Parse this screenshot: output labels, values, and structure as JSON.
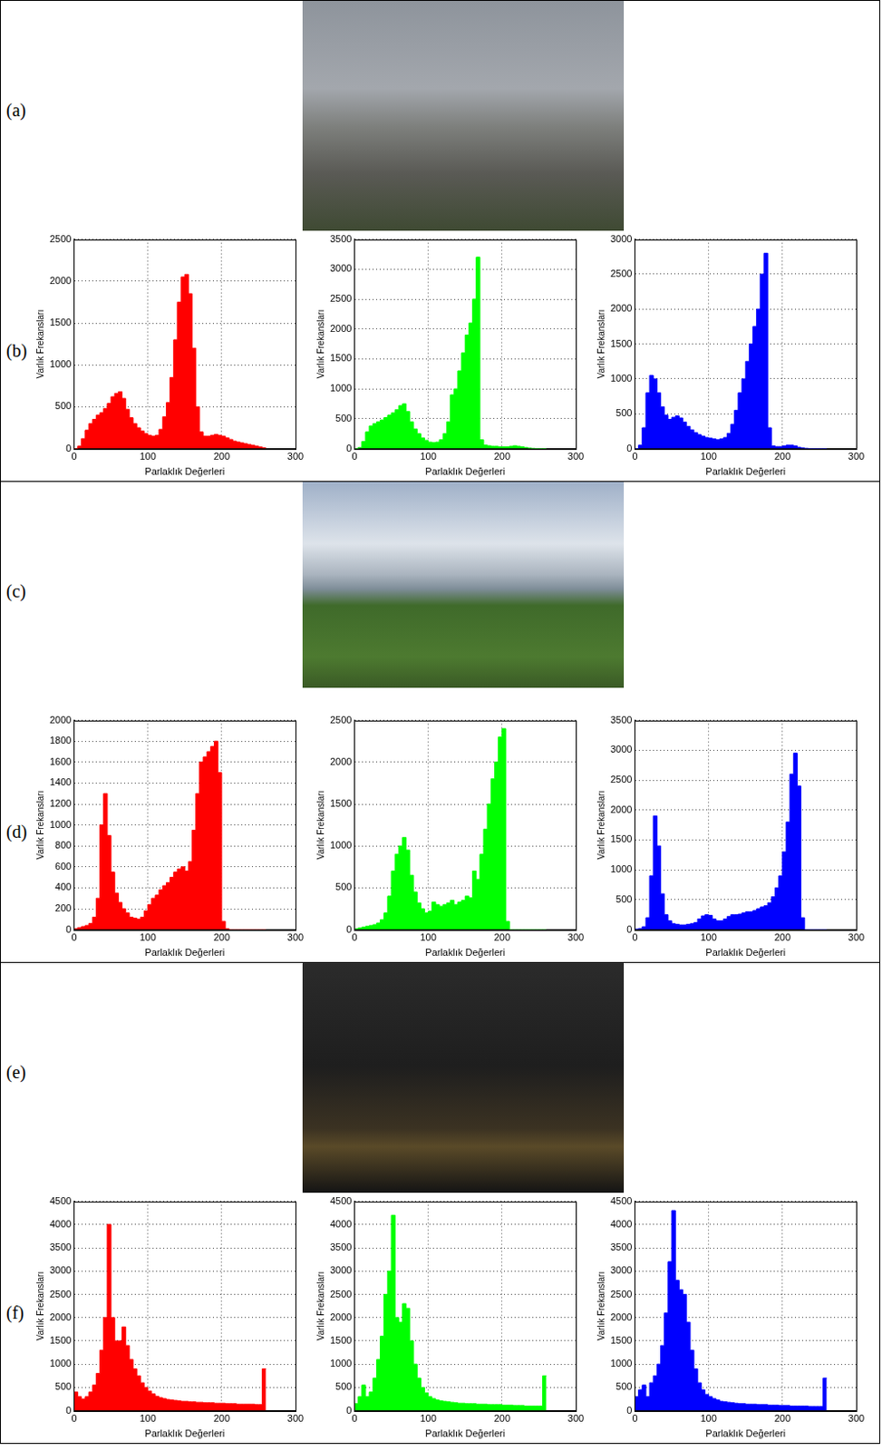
{
  "panel_labels": [
    "(a)",
    "(b)",
    "(c)",
    "(d)",
    "(e)",
    "(f)"
  ],
  "chart_data": [
    {
      "type": "histogram",
      "color": "#ff0000",
      "xlabel": "Parlaklık Değerleri",
      "ylabel": "Varlık Frekansları",
      "bins": [
        0,
        5,
        10,
        15,
        20,
        25,
        30,
        35,
        40,
        45,
        50,
        55,
        60,
        65,
        70,
        75,
        80,
        85,
        90,
        95,
        100,
        105,
        110,
        115,
        120,
        125,
        130,
        135,
        140,
        145,
        150,
        155,
        160,
        165,
        170,
        175,
        180,
        185,
        190,
        195,
        200,
        205,
        210,
        215,
        220,
        225,
        230,
        235,
        240,
        245,
        250,
        255,
        260
      ],
      "values": [
        0,
        30,
        120,
        220,
        300,
        350,
        400,
        430,
        480,
        540,
        620,
        660,
        680,
        600,
        470,
        370,
        300,
        250,
        210,
        180,
        160,
        150,
        160,
        230,
        380,
        550,
        850,
        1300,
        1750,
        2050,
        2080,
        1850,
        1200,
        500,
        200,
        150,
        150,
        160,
        170,
        160,
        150,
        130,
        110,
        90,
        80,
        70,
        60,
        50,
        40,
        30,
        20,
        10
      ],
      "xlim": [
        0,
        300
      ],
      "xticks": [
        0,
        100,
        200,
        300
      ],
      "ylim": [
        0,
        2500
      ],
      "yticks": [
        0,
        500,
        1000,
        1500,
        2000,
        2500
      ],
      "grid": true
    },
    {
      "type": "histogram",
      "color": "#00ff00",
      "xlabel": "Parlaklık Değerleri",
      "ylabel": "Varlık Frekansları",
      "bins": [
        0,
        5,
        10,
        15,
        20,
        25,
        30,
        35,
        40,
        45,
        50,
        55,
        60,
        65,
        70,
        75,
        80,
        85,
        90,
        95,
        100,
        105,
        110,
        115,
        120,
        125,
        130,
        135,
        140,
        145,
        150,
        155,
        160,
        165,
        170,
        175,
        180,
        185,
        190,
        195,
        200,
        205,
        210,
        215,
        220,
        225,
        230,
        235,
        240,
        245,
        250,
        255,
        260
      ],
      "values": [
        0,
        20,
        120,
        280,
        380,
        420,
        450,
        480,
        520,
        560,
        600,
        650,
        720,
        750,
        620,
        450,
        330,
        250,
        180,
        140,
        110,
        100,
        110,
        150,
        250,
        450,
        900,
        1000,
        1300,
        1600,
        1900,
        2100,
        2500,
        3200,
        150,
        60,
        50,
        40,
        40,
        30,
        30,
        30,
        40,
        50,
        40,
        30,
        20,
        10,
        5,
        0,
        0,
        0
      ],
      "xlim": [
        0,
        300
      ],
      "xticks": [
        0,
        100,
        200,
        300
      ],
      "ylim": [
        0,
        3500
      ],
      "yticks": [
        0,
        500,
        1000,
        1500,
        2000,
        2500,
        3000,
        3500
      ],
      "grid": true
    },
    {
      "type": "histogram",
      "color": "#0000ff",
      "xlabel": "Parlaklık Değerleri",
      "ylabel": "Varlık Frekansları",
      "bins": [
        0,
        5,
        10,
        15,
        20,
        25,
        30,
        35,
        40,
        45,
        50,
        55,
        60,
        65,
        70,
        75,
        80,
        85,
        90,
        95,
        100,
        105,
        110,
        115,
        120,
        125,
        130,
        135,
        140,
        145,
        150,
        155,
        160,
        165,
        170,
        175,
        180,
        185,
        190,
        195,
        200,
        205,
        210,
        215,
        220,
        225,
        230,
        235,
        240,
        245,
        250,
        255,
        260
      ],
      "values": [
        0,
        50,
        300,
        800,
        1050,
        1000,
        800,
        600,
        480,
        420,
        450,
        470,
        440,
        380,
        320,
        270,
        230,
        200,
        180,
        160,
        150,
        140,
        130,
        140,
        160,
        220,
        350,
        550,
        800,
        1000,
        1250,
        1500,
        1750,
        2000,
        2500,
        2800,
        300,
        40,
        30,
        30,
        40,
        50,
        50,
        40,
        20,
        10,
        5,
        0,
        0,
        0,
        0,
        0
      ],
      "xlim": [
        0,
        300
      ],
      "xticks": [
        0,
        100,
        200,
        300
      ],
      "ylim": [
        0,
        3000
      ],
      "yticks": [
        0,
        500,
        1000,
        1500,
        2000,
        2500,
        3000
      ],
      "grid": true
    },
    {
      "type": "histogram",
      "color": "#ff0000",
      "xlabel": "Parlaklık Değerleri",
      "ylabel": "Varlık Frekansları",
      "bins": [
        0,
        5,
        10,
        15,
        20,
        25,
        30,
        35,
        40,
        45,
        50,
        55,
        60,
        65,
        70,
        75,
        80,
        85,
        90,
        95,
        100,
        105,
        110,
        115,
        120,
        125,
        130,
        135,
        140,
        145,
        150,
        155,
        160,
        165,
        170,
        175,
        180,
        185,
        190,
        195,
        200,
        205,
        210,
        215,
        220,
        225,
        230,
        235,
        240,
        245,
        250,
        255,
        260
      ],
      "values": [
        10,
        20,
        30,
        40,
        60,
        120,
        300,
        1000,
        1300,
        900,
        550,
        350,
        260,
        200,
        160,
        120,
        110,
        100,
        120,
        180,
        240,
        300,
        330,
        380,
        420,
        450,
        500,
        550,
        580,
        600,
        560,
        650,
        950,
        1300,
        1600,
        1650,
        1700,
        1750,
        1800,
        1500,
        80,
        10,
        0,
        0,
        0,
        0,
        0,
        0,
        0,
        0,
        0,
        0
      ],
      "xlim": [
        0,
        300
      ],
      "xticks": [
        0,
        100,
        200,
        300
      ],
      "ylim": [
        0,
        2000
      ],
      "yticks": [
        0,
        200,
        400,
        600,
        800,
        1000,
        1200,
        1400,
        1600,
        1800,
        2000
      ],
      "grid": true
    },
    {
      "type": "histogram",
      "color": "#00ff00",
      "xlabel": "Parlaklık Değerleri",
      "ylabel": "Varlık Frekansları",
      "bins": [
        0,
        5,
        10,
        15,
        20,
        25,
        30,
        35,
        40,
        45,
        50,
        55,
        60,
        65,
        70,
        75,
        80,
        85,
        90,
        95,
        100,
        105,
        110,
        115,
        120,
        125,
        130,
        135,
        140,
        145,
        150,
        155,
        160,
        165,
        170,
        175,
        180,
        185,
        190,
        195,
        200,
        205,
        210,
        215,
        220,
        225,
        230,
        235,
        240,
        245,
        250,
        255,
        260
      ],
      "values": [
        10,
        20,
        30,
        40,
        50,
        60,
        80,
        120,
        200,
        400,
        700,
        900,
        1000,
        1100,
        950,
        650,
        450,
        320,
        250,
        200,
        220,
        330,
        300,
        280,
        300,
        320,
        350,
        300,
        330,
        350,
        400,
        380,
        700,
        600,
        900,
        1200,
        1500,
        1800,
        2000,
        2300,
        2400,
        100,
        0,
        0,
        0,
        0,
        0,
        0,
        0,
        0,
        0,
        0
      ],
      "xlim": [
        0,
        300
      ],
      "xticks": [
        0,
        100,
        200,
        300
      ],
      "ylim": [
        0,
        2500
      ],
      "yticks": [
        0,
        500,
        1000,
        1500,
        2000,
        2500
      ],
      "grid": true
    },
    {
      "type": "histogram",
      "color": "#0000ff",
      "xlabel": "Parlaklık Değerleri",
      "ylabel": "Varlık Frekansları",
      "bins": [
        0,
        5,
        10,
        15,
        20,
        25,
        30,
        35,
        40,
        45,
        50,
        55,
        60,
        65,
        70,
        75,
        80,
        85,
        90,
        95,
        100,
        105,
        110,
        115,
        120,
        125,
        130,
        135,
        140,
        145,
        150,
        155,
        160,
        165,
        170,
        175,
        180,
        185,
        190,
        195,
        200,
        205,
        210,
        215,
        220,
        225,
        230,
        235,
        240,
        245,
        250,
        255,
        260
      ],
      "values": [
        10,
        20,
        50,
        200,
        900,
        1900,
        1400,
        600,
        250,
        150,
        100,
        90,
        80,
        80,
        90,
        100,
        120,
        180,
        230,
        250,
        240,
        180,
        150,
        150,
        180,
        220,
        250,
        250,
        260,
        280,
        300,
        300,
        320,
        350,
        380,
        400,
        450,
        550,
        700,
        900,
        1300,
        1800,
        2600,
        2950,
        2400,
        200,
        0,
        0,
        0,
        0,
        0,
        0
      ],
      "xlim": [
        0,
        300
      ],
      "xticks": [
        0,
        100,
        200,
        300
      ],
      "ylim": [
        0,
        3500
      ],
      "yticks": [
        0,
        500,
        1000,
        1500,
        2000,
        2500,
        3000,
        3500
      ],
      "grid": true
    },
    {
      "type": "histogram",
      "color": "#ff0000",
      "xlabel": "Parlaklık Değerleri",
      "ylabel": "Varlık Frekansları",
      "bins": [
        0,
        5,
        10,
        15,
        20,
        25,
        30,
        35,
        40,
        45,
        50,
        55,
        60,
        65,
        70,
        75,
        80,
        85,
        90,
        95,
        100,
        105,
        110,
        115,
        120,
        125,
        130,
        135,
        140,
        145,
        150,
        155,
        160,
        165,
        170,
        175,
        180,
        185,
        190,
        195,
        200,
        205,
        210,
        215,
        220,
        225,
        230,
        235,
        240,
        245,
        250,
        255,
        260
      ],
      "values": [
        400,
        300,
        250,
        300,
        400,
        550,
        800,
        1300,
        2000,
        4000,
        2000,
        1500,
        1500,
        1800,
        1400,
        1100,
        900,
        750,
        600,
        500,
        420,
        360,
        310,
        280,
        260,
        240,
        230,
        220,
        210,
        200,
        200,
        190,
        190,
        180,
        180,
        170,
        170,
        170,
        160,
        160,
        160,
        150,
        150,
        150,
        140,
        140,
        140,
        140,
        140,
        130,
        130,
        900
      ],
      "xlim": [
        0,
        300
      ],
      "xticks": [
        0,
        100,
        200,
        300
      ],
      "ylim": [
        0,
        4500
      ],
      "yticks": [
        0,
        500,
        1000,
        1500,
        2000,
        2500,
        3000,
        3500,
        4000,
        4500
      ],
      "grid": true
    },
    {
      "type": "histogram",
      "color": "#00ff00",
      "xlabel": "Parlaklık Değerleri",
      "ylabel": "Varlık Frekansları",
      "bins": [
        0,
        5,
        10,
        15,
        20,
        25,
        30,
        35,
        40,
        45,
        50,
        55,
        60,
        65,
        70,
        75,
        80,
        85,
        90,
        95,
        100,
        105,
        110,
        115,
        120,
        125,
        130,
        135,
        140,
        145,
        150,
        155,
        160,
        165,
        170,
        175,
        180,
        185,
        190,
        195,
        200,
        205,
        210,
        215,
        220,
        225,
        230,
        235,
        240,
        245,
        250,
        255,
        260
      ],
      "values": [
        150,
        300,
        550,
        300,
        400,
        700,
        1100,
        1600,
        2500,
        3000,
        4200,
        2000,
        1900,
        2300,
        2200,
        1500,
        1000,
        700,
        500,
        380,
        300,
        260,
        230,
        210,
        200,
        190,
        180,
        170,
        160,
        160,
        150,
        150,
        150,
        140,
        140,
        140,
        130,
        130,
        130,
        130,
        120,
        120,
        120,
        110,
        110,
        110,
        100,
        100,
        100,
        100,
        100,
        750
      ],
      "xlim": [
        0,
        300
      ],
      "xticks": [
        0,
        100,
        200,
        300
      ],
      "ylim": [
        0,
        4500
      ],
      "yticks": [
        0,
        500,
        1000,
        1500,
        2000,
        2500,
        3000,
        3500,
        4000,
        4500
      ],
      "grid": true
    },
    {
      "type": "histogram",
      "color": "#0000ff",
      "xlabel": "Parlaklık Değerleri",
      "ylabel": "Varlık Frekansları",
      "bins": [
        0,
        5,
        10,
        15,
        20,
        25,
        30,
        35,
        40,
        45,
        50,
        55,
        60,
        65,
        70,
        75,
        80,
        85,
        90,
        95,
        100,
        105,
        110,
        115,
        120,
        125,
        130,
        135,
        140,
        145,
        150,
        155,
        160,
        165,
        170,
        175,
        180,
        185,
        190,
        195,
        200,
        205,
        210,
        215,
        220,
        225,
        230,
        235,
        240,
        245,
        250,
        255,
        260
      ],
      "values": [
        300,
        450,
        550,
        300,
        600,
        750,
        1000,
        1400,
        2100,
        3200,
        4300,
        2800,
        2600,
        2500,
        1900,
        1300,
        900,
        600,
        450,
        350,
        300,
        260,
        230,
        200,
        190,
        180,
        170,
        160,
        150,
        150,
        140,
        140,
        140,
        130,
        130,
        130,
        120,
        120,
        120,
        110,
        110,
        110,
        100,
        100,
        100,
        100,
        100,
        90,
        90,
        90,
        90,
        700
      ],
      "xlim": [
        0,
        300
      ],
      "xticks": [
        0,
        100,
        200,
        300
      ],
      "ylim": [
        0,
        4500
      ],
      "yticks": [
        0,
        500,
        1000,
        1500,
        2000,
        2500,
        3000,
        3500,
        4000,
        4500
      ],
      "grid": true
    }
  ]
}
